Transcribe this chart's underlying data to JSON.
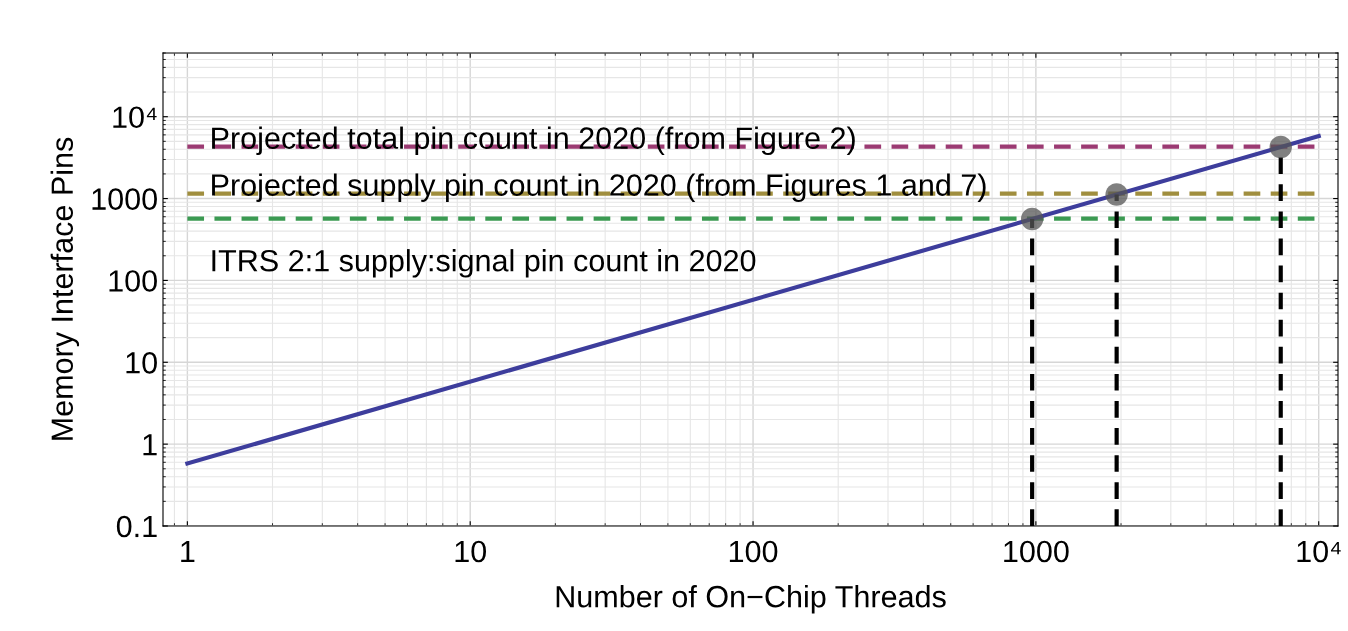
{
  "chart_data": {
    "type": "line",
    "xlabel": "Number of On−Chip Threads",
    "ylabel": "Memory Interface Pins",
    "log": "xy",
    "grid": true,
    "xlim": [
      0.82,
      11700
    ],
    "ylim": [
      0.1,
      60000
    ],
    "xticks": [
      1,
      10,
      100,
      1000,
      {
        "value": 10000,
        "label": "10⁴"
      }
    ],
    "yticks": [
      0.1,
      1,
      10,
      100,
      1000,
      {
        "value": 10000,
        "label": "10⁴"
      }
    ],
    "series": [
      {
        "color": "#3d3d9c",
        "x": [
          1,
          10000
        ],
        "values": [
          0.58,
          5800
        ]
      },
      {
        "type": "scatter",
        "color": "#555555",
        "marker": "circle",
        "x": [
          970,
          1930,
          7340
        ],
        "values": [
          563,
          1120,
          4260
        ]
      }
    ],
    "ref_lines": [
      {
        "axis": "y",
        "value": 4300,
        "color": "#9b3a72",
        "line_style": "dashed",
        "label": "Projected total pin count in 2020 (from Figure 2)"
      },
      {
        "axis": "y",
        "value": 1150,
        "color": "#a08e3e",
        "line_style": "dashed",
        "label": "Projected supply pin count in 2020 (from Figures 1 and 7)"
      },
      {
        "axis": "y",
        "value": 570,
        "color": "#3b9a52",
        "line_style": "dashed"
      },
      {
        "axis": "x",
        "value": 970,
        "color": "#000000",
        "line_style": "dashed"
      },
      {
        "axis": "x",
        "value": 1930,
        "color": "#000000",
        "line_style": "dashed"
      },
      {
        "axis": "x",
        "value": 7340,
        "color": "#000000",
        "line_style": "dashed"
      }
    ],
    "annotations": [
      "ITRS 2:1 supply:signal pin count in 2020"
    ]
  }
}
